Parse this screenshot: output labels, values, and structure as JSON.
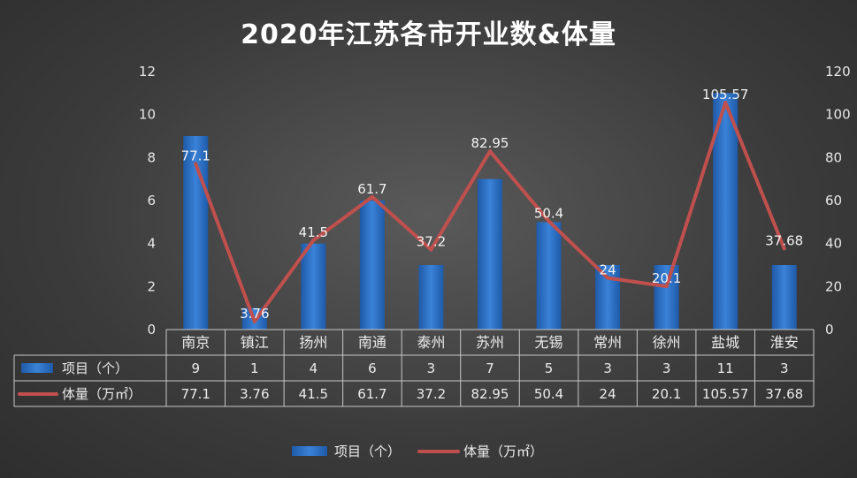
{
  "chart_data": {
    "type": "bar",
    "title": "2020年江苏各市开业数&体量",
    "categories": [
      "南京",
      "镇江",
      "扬州",
      "南通",
      "泰州",
      "苏州",
      "无锡",
      "常州",
      "徐州",
      "盐城",
      "淮安"
    ],
    "series": [
      {
        "name": "项目（个）",
        "type": "bar",
        "axis": "left",
        "color": "#2e6fc4",
        "values": [
          9,
          1,
          4,
          6,
          3,
          7,
          5,
          3,
          3,
          11,
          3
        ]
      },
      {
        "name": "体量（万㎡）",
        "type": "line",
        "axis": "right",
        "color": "#c0504d",
        "values": [
          77.1,
          3.76,
          41.5,
          61.7,
          37.2,
          82.95,
          50.4,
          24,
          20.1,
          105.57,
          37.68
        ]
      }
    ],
    "y_left": {
      "min": 0,
      "max": 12,
      "ticks": [
        0,
        2,
        4,
        6,
        8,
        10,
        12
      ]
    },
    "y_right": {
      "min": 0,
      "max": 120,
      "ticks": [
        0,
        20,
        40,
        60,
        80,
        100,
        120
      ]
    },
    "data_labels_shown": "line series",
    "data_table": true,
    "legend": "bottom-center",
    "grid": false
  }
}
